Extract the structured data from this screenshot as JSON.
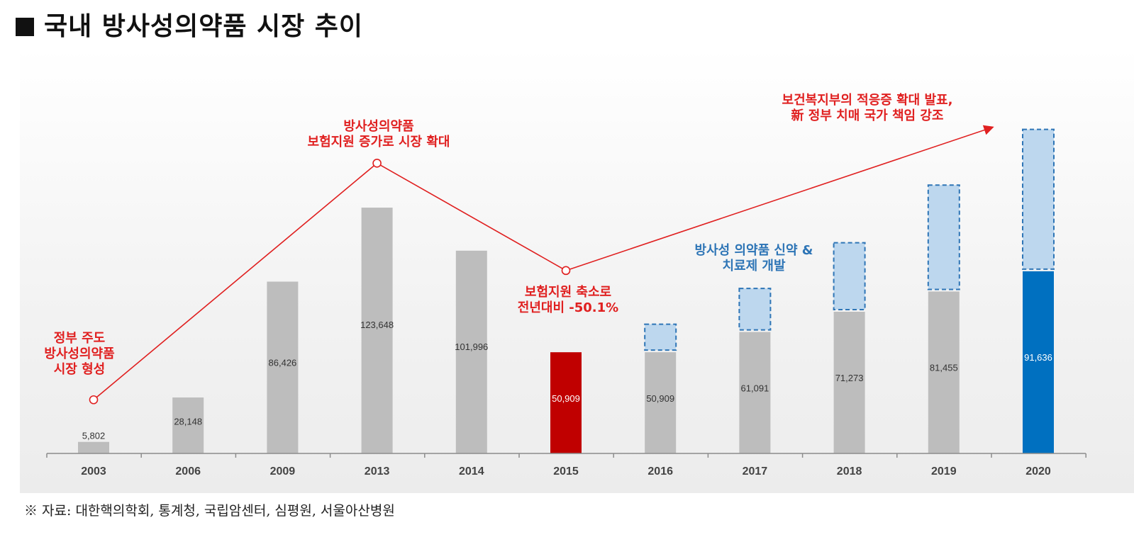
{
  "title": "국내 방사성의약품 시장 추이",
  "source": "※ 자료: 대한핵의학회, 통계청, 국립암센터, 심평원, 서울아산병원",
  "colors": {
    "actual": "#bdbdbd",
    "drop": "#c00000",
    "target": "#0070c0",
    "forecast_fill": "#bdd7ee",
    "forecast_border": "#2e75b6",
    "trend_line": "#e02020",
    "annotation_red": "#e02020",
    "annotation_blue": "#2e75b6"
  },
  "chart_data": {
    "type": "bar",
    "categories": [
      "2003",
      "2006",
      "2009",
      "2013",
      "2014",
      "2015",
      "2016",
      "2017",
      "2018",
      "2019",
      "2020"
    ],
    "values": [
      5802,
      28148,
      86426,
      123648,
      101996,
      50909,
      50909,
      61091,
      71273,
      81455,
      91636
    ],
    "value_labels": [
      "5,802",
      "28,148",
      "86,426",
      "123,648",
      "101,996",
      "50,909",
      "50,909",
      "61,091",
      "71,273",
      "81,455",
      "91,636"
    ],
    "bar_colors": [
      "actual",
      "actual",
      "actual",
      "actual",
      "actual",
      "drop",
      "actual",
      "actual",
      "actual",
      "actual",
      "target"
    ],
    "forecast_extension_totals": [
      null,
      null,
      null,
      null,
      null,
      null,
      65000,
      83000,
      106000,
      135000,
      163000
    ],
    "ylim": [
      0,
      170000
    ],
    "trend_line": [
      {
        "category": "2003",
        "value": 27000
      },
      {
        "category": "2013",
        "value": 146000
      },
      {
        "category": "2015",
        "value": 92000
      }
    ],
    "trend_arrow_end": {
      "category": "2020",
      "value": 164000
    },
    "annotations": [
      {
        "lines": [
          "정부 주도",
          "방사성의약품",
          "시장 형성"
        ],
        "color": "annotation_red"
      },
      {
        "lines": [
          "방사성의약품",
          "보험지원 증가로 시장 확대"
        ],
        "color": "annotation_red"
      },
      {
        "lines": [
          "보험지원 축소로",
          "전년대비 -50.1%"
        ],
        "color": "annotation_red"
      },
      {
        "lines": [
          "방사성 의약품 신약 &",
          "치료제 개발"
        ],
        "color": "annotation_blue"
      },
      {
        "lines": [
          "보건복지부의 적응증 확대 발표,",
          "新 정부 치매 국가 책임 강조"
        ],
        "color": "annotation_red"
      }
    ],
    "xlabel": "",
    "ylabel": "",
    "grid": false,
    "legend": "none"
  }
}
